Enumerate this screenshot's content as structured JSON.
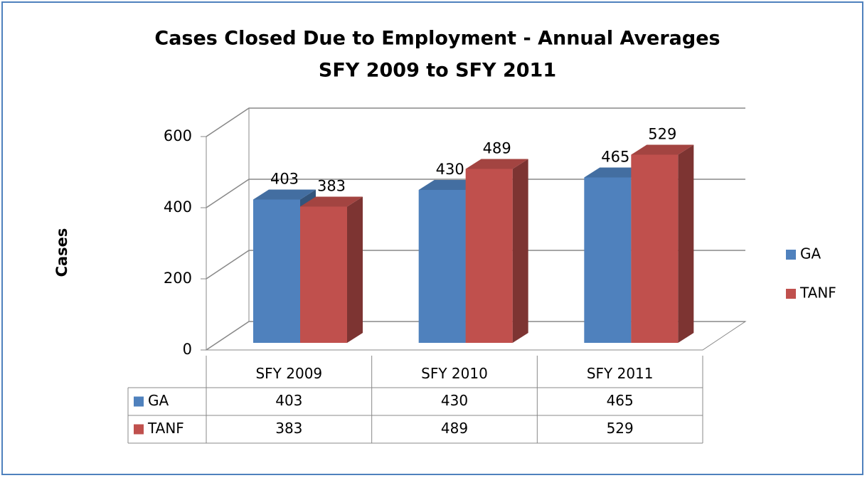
{
  "chart_data": {
    "type": "bar3d",
    "title": "Cases Closed Due to Employment - Annual Averages",
    "subtitle": "SFY 2009 to SFY 2011",
    "y_label": "Cases",
    "categories": [
      "SFY 2009",
      "SFY 2010",
      "SFY 2011"
    ],
    "series": [
      {
        "name": "GA",
        "color": "#4f81bd",
        "values": [
          403,
          430,
          465
        ]
      },
      {
        "name": "TANF",
        "color": "#c0504d",
        "values": [
          383,
          489,
          529
        ]
      }
    ],
    "ylim": [
      0,
      600
    ],
    "yticks": [
      0,
      200,
      400,
      600
    ],
    "grid": true,
    "legend": "right",
    "data_table": true
  }
}
